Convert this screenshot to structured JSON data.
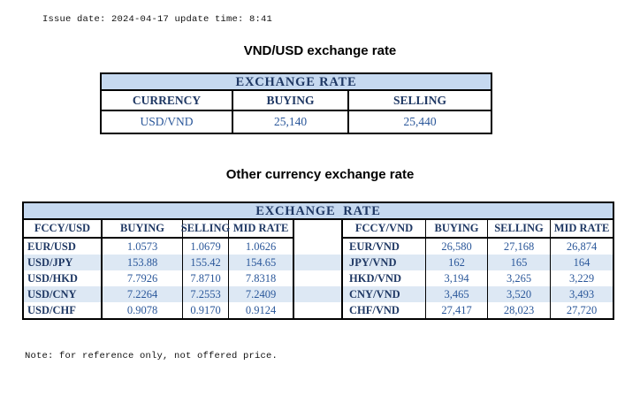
{
  "meta": {
    "issue_line": "Issue date: 2024-04-17 update time: 8:41",
    "note_line": "Note: for reference only, not offered price."
  },
  "titles": {
    "usd_table": "VND/USD exchange rate",
    "other_table": "Other currency exchange rate"
  },
  "usd_table": {
    "header": "EXCHANGE RATE",
    "columns": [
      "CURRENCY",
      "BUYING",
      "SELLING"
    ],
    "rows": [
      [
        "USD/VND",
        "25,140",
        "25,440"
      ]
    ]
  },
  "other_table": {
    "header": "EXCHANGE  RATE",
    "left": {
      "columns": [
        "FCCY/USD",
        "BUYING",
        "SELLING",
        "MID RATE"
      ],
      "rows": [
        [
          "EUR/USD",
          "1.0573",
          "1.0679",
          "1.0626"
        ],
        [
          "USD/JPY",
          "153.88",
          "155.42",
          "154.65"
        ],
        [
          "USD/HKD",
          "7.7926",
          "7.8710",
          "7.8318"
        ],
        [
          "USD/CNY",
          "7.2264",
          "7.2553",
          "7.2409"
        ],
        [
          "USD/CHF",
          "0.9078",
          "0.9170",
          "0.9124"
        ]
      ]
    },
    "right": {
      "columns": [
        "FCCY/VND",
        "BUYING",
        "SELLING",
        "MID RATE"
      ],
      "rows": [
        [
          "EUR/VND",
          "26,580",
          "27,168",
          "26,874"
        ],
        [
          "JPY/VND",
          "162",
          "165",
          "164"
        ],
        [
          "HKD/VND",
          "3,194",
          "3,265",
          "3,229"
        ],
        [
          "CNY/VND",
          "3,465",
          "3,520",
          "3,493"
        ],
        [
          "CHF/VND",
          "27,417",
          "28,023",
          "27,720"
        ]
      ]
    }
  },
  "colors": {
    "header_fill": "#C6D9F0",
    "band_fill": "#DDE8F4",
    "navy": "#1F3864",
    "value_blue": "#2A579A"
  }
}
